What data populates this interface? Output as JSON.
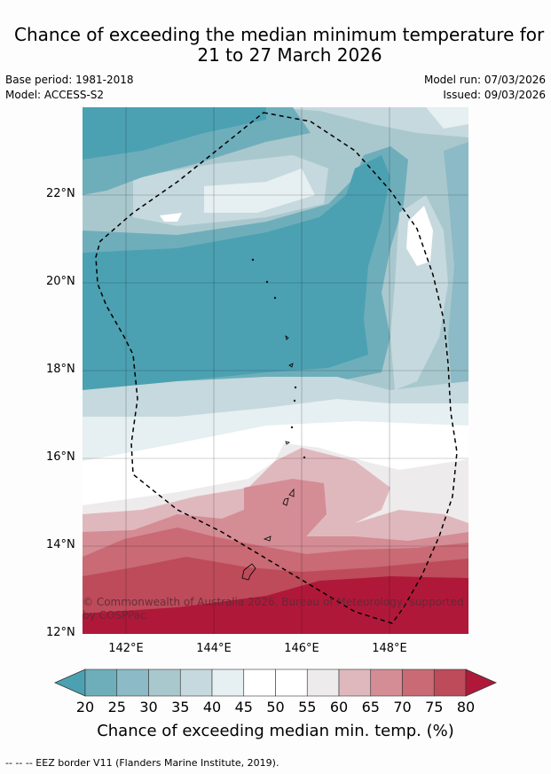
{
  "title_line1": "Chance of exceeding the median minimum temperature for",
  "title_line2": "21 to 27 March 2026",
  "base_period": "Base period: 1981-2018",
  "model": "Model: ACCESS-S2",
  "model_run": "Model run: 07/03/2026",
  "issued": "Issued: 09/03/2026",
  "lat_labels": [
    "22°N",
    "20°N",
    "18°N",
    "16°N",
    "14°N",
    "12°N"
  ],
  "lon_labels": [
    "142°E",
    "144°E",
    "146°E",
    "148°E"
  ],
  "colorbar": {
    "ticks": [
      "20",
      "25",
      "30",
      "35",
      "40",
      "45",
      "50",
      "55",
      "60",
      "65",
      "70",
      "75",
      "80"
    ],
    "colors": [
      "#6eaebb",
      "#8cbac6",
      "#a9c8ce",
      "#c6d9de",
      "#e6eff1",
      "#ffffff",
      "#ffffff",
      "#eeebec",
      "#dfb8bd",
      "#d48c95",
      "#c96a74",
      "#bd4b5a"
    ],
    "low_color": "#4ba1b2",
    "high_color": "#b0183a",
    "title": "Chance of exceeding median min. temp. (%)"
  },
  "credit": "© Commonwealth of Australia 2026, Bureau of Meteorology, supported by COSPPac",
  "footer": "--  --  -- EEZ border V11 (Flanders Marine Institute, 2019)."
}
